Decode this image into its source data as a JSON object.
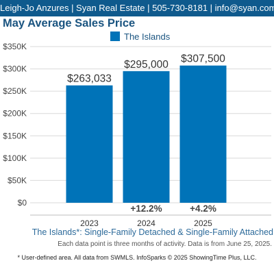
{
  "header": {
    "text": "Leigh-Jo Anzures | Syan Real Estate | 505-730-8181 | info@syan.com"
  },
  "colors": {
    "header_bg": "#0f5a8d",
    "bar": "#0073b8",
    "title": "#1a5480",
    "grid": "#d9d9d9"
  },
  "chart_data": {
    "type": "bar",
    "title": "May Average Sales Price",
    "categories": [
      "2023",
      "2024",
      "2025"
    ],
    "series": [
      {
        "name": "The Islands",
        "values": [
          263033,
          295000,
          307500
        ]
      }
    ],
    "data_labels": [
      "$263,033",
      "$295,000",
      "$307,500"
    ],
    "change_labels": [
      "",
      "+12.2%",
      "+4.2%"
    ],
    "ylim": [
      0,
      350000
    ],
    "yticks": [
      0,
      50000,
      100000,
      150000,
      200000,
      250000,
      300000,
      350000
    ],
    "ytick_labels": [
      "$0",
      "$50K",
      "$100K",
      "$150K",
      "$200K",
      "$250K",
      "$300K",
      "$350K"
    ],
    "grid": true,
    "legend": "top-center",
    "subtitle": "The Islands*: Single-Family Detached & Single-Family Attached",
    "note": "Each data point is three months of activity. Data is from June 25, 2025."
  },
  "footer": {
    "text": "* User-defined area. All data from SWMLS. InfoSparks © 2025 ShowingTime Plus, LLC."
  }
}
